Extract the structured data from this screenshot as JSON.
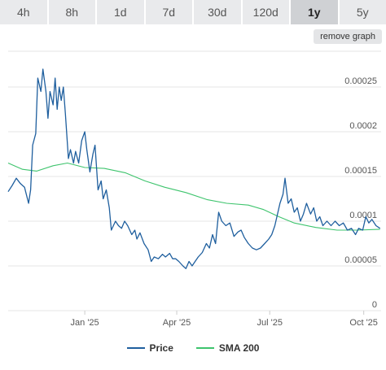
{
  "tabs": [
    {
      "label": "4h",
      "active": false
    },
    {
      "label": "8h",
      "active": false
    },
    {
      "label": "1d",
      "active": false
    },
    {
      "label": "7d",
      "active": false
    },
    {
      "label": "30d",
      "active": false
    },
    {
      "label": "120d",
      "active": false
    },
    {
      "label": "1y",
      "active": true
    },
    {
      "label": "5y",
      "active": false
    }
  ],
  "remove_graph_label": "remove graph",
  "colors": {
    "price": "#1f5f9e",
    "sma": "#3ec46d",
    "grid": "#e6e6e6",
    "axis_text": "#555555"
  },
  "chart_data": {
    "type": "line",
    "title": "",
    "xlabel": "",
    "ylabel": "",
    "grid": true,
    "legend_position": "bottom",
    "xlim": [
      "2024-10-18",
      "2025-10-18"
    ],
    "ylim": [
      0,
      0.00029
    ],
    "x_ticks": [
      {
        "date": "2025-01-01",
        "label": "Jan '25"
      },
      {
        "date": "2025-04-01",
        "label": "Apr '25"
      },
      {
        "date": "2025-07-01",
        "label": "Jul '25"
      },
      {
        "date": "2025-10-01",
        "label": "Oct '25"
      }
    ],
    "y_ticks": [
      {
        "value": 0,
        "label": "0"
      },
      {
        "value": 5e-05,
        "label": "0.00005"
      },
      {
        "value": 0.0001,
        "label": "0.0001"
      },
      {
        "value": 0.00015,
        "label": "0.00015"
      },
      {
        "value": 0.0002,
        "label": "0.0002"
      },
      {
        "value": 0.00025,
        "label": "0.00025"
      }
    ],
    "series": [
      {
        "name": "Price",
        "color": "#1f5f9e",
        "points": [
          [
            "2024-10-18",
            0.000133
          ],
          [
            "2024-10-22",
            0.00014
          ],
          [
            "2024-10-26",
            0.000148
          ],
          [
            "2024-10-30",
            0.000142
          ],
          [
            "2024-11-03",
            0.000138
          ],
          [
            "2024-11-07",
            0.00012
          ],
          [
            "2024-11-09",
            0.000135
          ],
          [
            "2024-11-11",
            0.000185
          ],
          [
            "2024-11-14",
            0.000198
          ],
          [
            "2024-11-16",
            0.00026
          ],
          [
            "2024-11-19",
            0.000245
          ],
          [
            "2024-11-21",
            0.00027
          ],
          [
            "2024-11-24",
            0.000245
          ],
          [
            "2024-11-26",
            0.000215
          ],
          [
            "2024-11-28",
            0.000245
          ],
          [
            "2024-12-01",
            0.00023
          ],
          [
            "2024-12-03",
            0.00026
          ],
          [
            "2024-12-05",
            0.000225
          ],
          [
            "2024-12-07",
            0.00025
          ],
          [
            "2024-12-09",
            0.000235
          ],
          [
            "2024-12-11",
            0.00025
          ],
          [
            "2024-12-13",
            0.00022
          ],
          [
            "2024-12-16",
            0.00017
          ],
          [
            "2024-12-18",
            0.00018
          ],
          [
            "2024-12-21",
            0.000165
          ],
          [
            "2024-12-23",
            0.000178
          ],
          [
            "2024-12-26",
            0.000165
          ],
          [
            "2024-12-29",
            0.00019
          ],
          [
            "2025-01-01",
            0.0002
          ],
          [
            "2025-01-03",
            0.00018
          ],
          [
            "2025-01-06",
            0.000155
          ],
          [
            "2025-01-09",
            0.000175
          ],
          [
            "2025-01-11",
            0.000185
          ],
          [
            "2025-01-14",
            0.000135
          ],
          [
            "2025-01-17",
            0.000145
          ],
          [
            "2025-01-19",
            0.000125
          ],
          [
            "2025-01-22",
            0.000135
          ],
          [
            "2025-01-25",
            0.000115
          ],
          [
            "2025-01-27",
            9e-05
          ],
          [
            "2025-01-31",
            0.0001
          ],
          [
            "2025-02-03",
            9.5e-05
          ],
          [
            "2025-02-06",
            9.2e-05
          ],
          [
            "2025-02-09",
            0.0001
          ],
          [
            "2025-02-12",
            9.5e-05
          ],
          [
            "2025-02-16",
            8.5e-05
          ],
          [
            "2025-02-19",
            9e-05
          ],
          [
            "2025-02-21",
            8e-05
          ],
          [
            "2025-02-24",
            8.7e-05
          ],
          [
            "2025-02-28",
            7.5e-05
          ],
          [
            "2025-03-04",
            6.8e-05
          ],
          [
            "2025-03-07",
            5.5e-05
          ],
          [
            "2025-03-10",
            6e-05
          ],
          [
            "2025-03-14",
            5.8e-05
          ],
          [
            "2025-03-18",
            6.3e-05
          ],
          [
            "2025-03-21",
            6e-05
          ],
          [
            "2025-03-25",
            6.4e-05
          ],
          [
            "2025-03-28",
            5.8e-05
          ],
          [
            "2025-03-31",
            5.8e-05
          ],
          [
            "2025-04-03",
            5.5e-05
          ],
          [
            "2025-04-07",
            5e-05
          ],
          [
            "2025-04-10",
            4.7e-05
          ],
          [
            "2025-04-13",
            5.5e-05
          ],
          [
            "2025-04-16",
            5e-05
          ],
          [
            "2025-04-19",
            5.5e-05
          ],
          [
            "2025-04-22",
            6e-05
          ],
          [
            "2025-04-26",
            6.5e-05
          ],
          [
            "2025-04-30",
            7.5e-05
          ],
          [
            "2025-05-03",
            7e-05
          ],
          [
            "2025-05-06",
            8.5e-05
          ],
          [
            "2025-05-09",
            7.5e-05
          ],
          [
            "2025-05-12",
            0.00011
          ],
          [
            "2025-05-15",
            0.0001
          ],
          [
            "2025-05-19",
            9.5e-05
          ],
          [
            "2025-05-23",
            9.8e-05
          ],
          [
            "2025-05-27",
            8.3e-05
          ],
          [
            "2025-05-31",
            8.8e-05
          ],
          [
            "2025-06-03",
            9e-05
          ],
          [
            "2025-06-06",
            8.2e-05
          ],
          [
            "2025-06-10",
            7.5e-05
          ],
          [
            "2025-06-14",
            7e-05
          ],
          [
            "2025-06-18",
            6.8e-05
          ],
          [
            "2025-06-22",
            7e-05
          ],
          [
            "2025-06-26",
            7.5e-05
          ],
          [
            "2025-06-30",
            8e-05
          ],
          [
            "2025-07-03",
            8.5e-05
          ],
          [
            "2025-07-06",
            9.5e-05
          ],
          [
            "2025-07-09",
            0.00011
          ],
          [
            "2025-07-11",
            0.00012
          ],
          [
            "2025-07-14",
            0.00013
          ],
          [
            "2025-07-16",
            0.000148
          ],
          [
            "2025-07-19",
            0.00012
          ],
          [
            "2025-07-22",
            0.000125
          ],
          [
            "2025-07-25",
            0.00011
          ],
          [
            "2025-07-28",
            0.000115
          ],
          [
            "2025-07-31",
            0.0001
          ],
          [
            "2025-08-03",
            0.000108
          ],
          [
            "2025-08-06",
            0.00012
          ],
          [
            "2025-08-10",
            0.000108
          ],
          [
            "2025-08-13",
            0.000115
          ],
          [
            "2025-08-16",
            0.0001
          ],
          [
            "2025-08-19",
            0.000105
          ],
          [
            "2025-08-22",
            9.5e-05
          ],
          [
            "2025-08-26",
            0.0001
          ],
          [
            "2025-08-30",
            9.5e-05
          ],
          [
            "2025-09-03",
            0.0001
          ],
          [
            "2025-09-07",
            9.5e-05
          ],
          [
            "2025-09-11",
            9.8e-05
          ],
          [
            "2025-09-15",
            9e-05
          ],
          [
            "2025-09-19",
            9.2e-05
          ],
          [
            "2025-09-23",
            8.5e-05
          ],
          [
            "2025-09-26",
            9.2e-05
          ],
          [
            "2025-09-30",
            9e-05
          ],
          [
            "2025-10-03",
            0.000105
          ],
          [
            "2025-10-06",
            9.8e-05
          ],
          [
            "2025-10-09",
            0.000102
          ],
          [
            "2025-10-13",
            9.5e-05
          ],
          [
            "2025-10-17",
            9.2e-05
          ]
        ]
      },
      {
        "name": "SMA 200",
        "color": "#3ec46d",
        "points": [
          [
            "2024-10-18",
            0.000165
          ],
          [
            "2024-11-01",
            0.000158
          ],
          [
            "2024-11-15",
            0.000156
          ],
          [
            "2024-12-01",
            0.000162
          ],
          [
            "2024-12-15",
            0.000165
          ],
          [
            "2025-01-01",
            0.00016
          ],
          [
            "2025-01-20",
            0.000159
          ],
          [
            "2025-02-10",
            0.000154
          ],
          [
            "2025-03-01",
            0.000145
          ],
          [
            "2025-03-20",
            0.000138
          ],
          [
            "2025-04-10",
            0.000132
          ],
          [
            "2025-05-01",
            0.000124
          ],
          [
            "2025-05-20",
            0.00012
          ],
          [
            "2025-06-10",
            0.000118
          ],
          [
            "2025-06-25",
            0.000113
          ],
          [
            "2025-07-10",
            0.000105
          ],
          [
            "2025-07-25",
            9.8e-05
          ],
          [
            "2025-08-15",
            9.3e-05
          ],
          [
            "2025-09-05",
            9e-05
          ],
          [
            "2025-09-25",
            9e-05
          ],
          [
            "2025-10-17",
            9.1e-05
          ]
        ]
      }
    ]
  }
}
